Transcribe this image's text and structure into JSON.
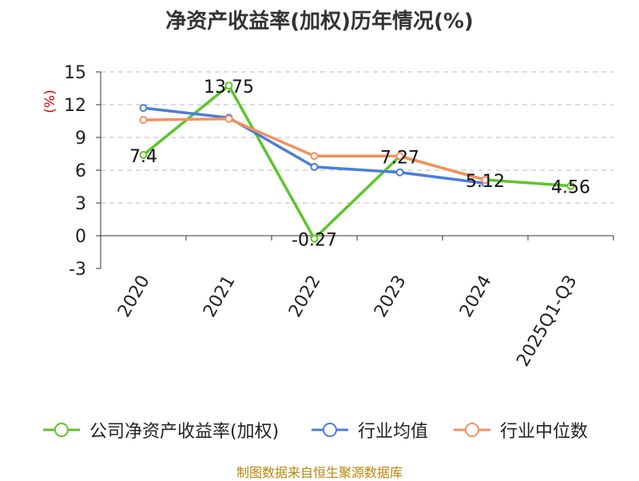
{
  "title": "净资产收益率(加权)历年情况(%)",
  "footer": "制图数据来自恒生聚源数据库",
  "colors": {
    "roe": "#5cc52a",
    "industry_avg": "#4a7fd6",
    "industry_median": "#f5905f",
    "axis": "#333333",
    "grid": "#bbbbbb",
    "unit": "#d00000"
  },
  "chart_data": {
    "type": "line",
    "title": "净资产收益率(加权)历年情况(%)",
    "ylabel": "(%)",
    "xlabel": "",
    "categories": [
      "2020",
      "2021",
      "2022",
      "2023",
      "2024",
      "2025Q1-Q3"
    ],
    "ylim": [
      -3,
      15
    ],
    "yticks": [
      -3,
      0,
      3,
      6,
      9,
      12,
      15
    ],
    "grid": true,
    "legend_position": "bottom",
    "series": [
      {
        "name": "公司净资产收益率(加权)",
        "color": "#5cc52a",
        "values": [
          7.4,
          13.75,
          -0.27,
          7.27,
          5.12,
          4.56
        ],
        "labels": [
          "7.4",
          "13.75",
          "-0.27",
          "7.27",
          "5.12",
          "4.56"
        ]
      },
      {
        "name": "行业均值",
        "color": "#4a7fd6",
        "values": [
          11.7,
          10.8,
          6.3,
          5.8,
          4.8,
          null
        ]
      },
      {
        "name": "行业中位数",
        "color": "#f5905f",
        "values": [
          10.6,
          10.7,
          7.3,
          7.3,
          5.1,
          null
        ]
      }
    ]
  }
}
